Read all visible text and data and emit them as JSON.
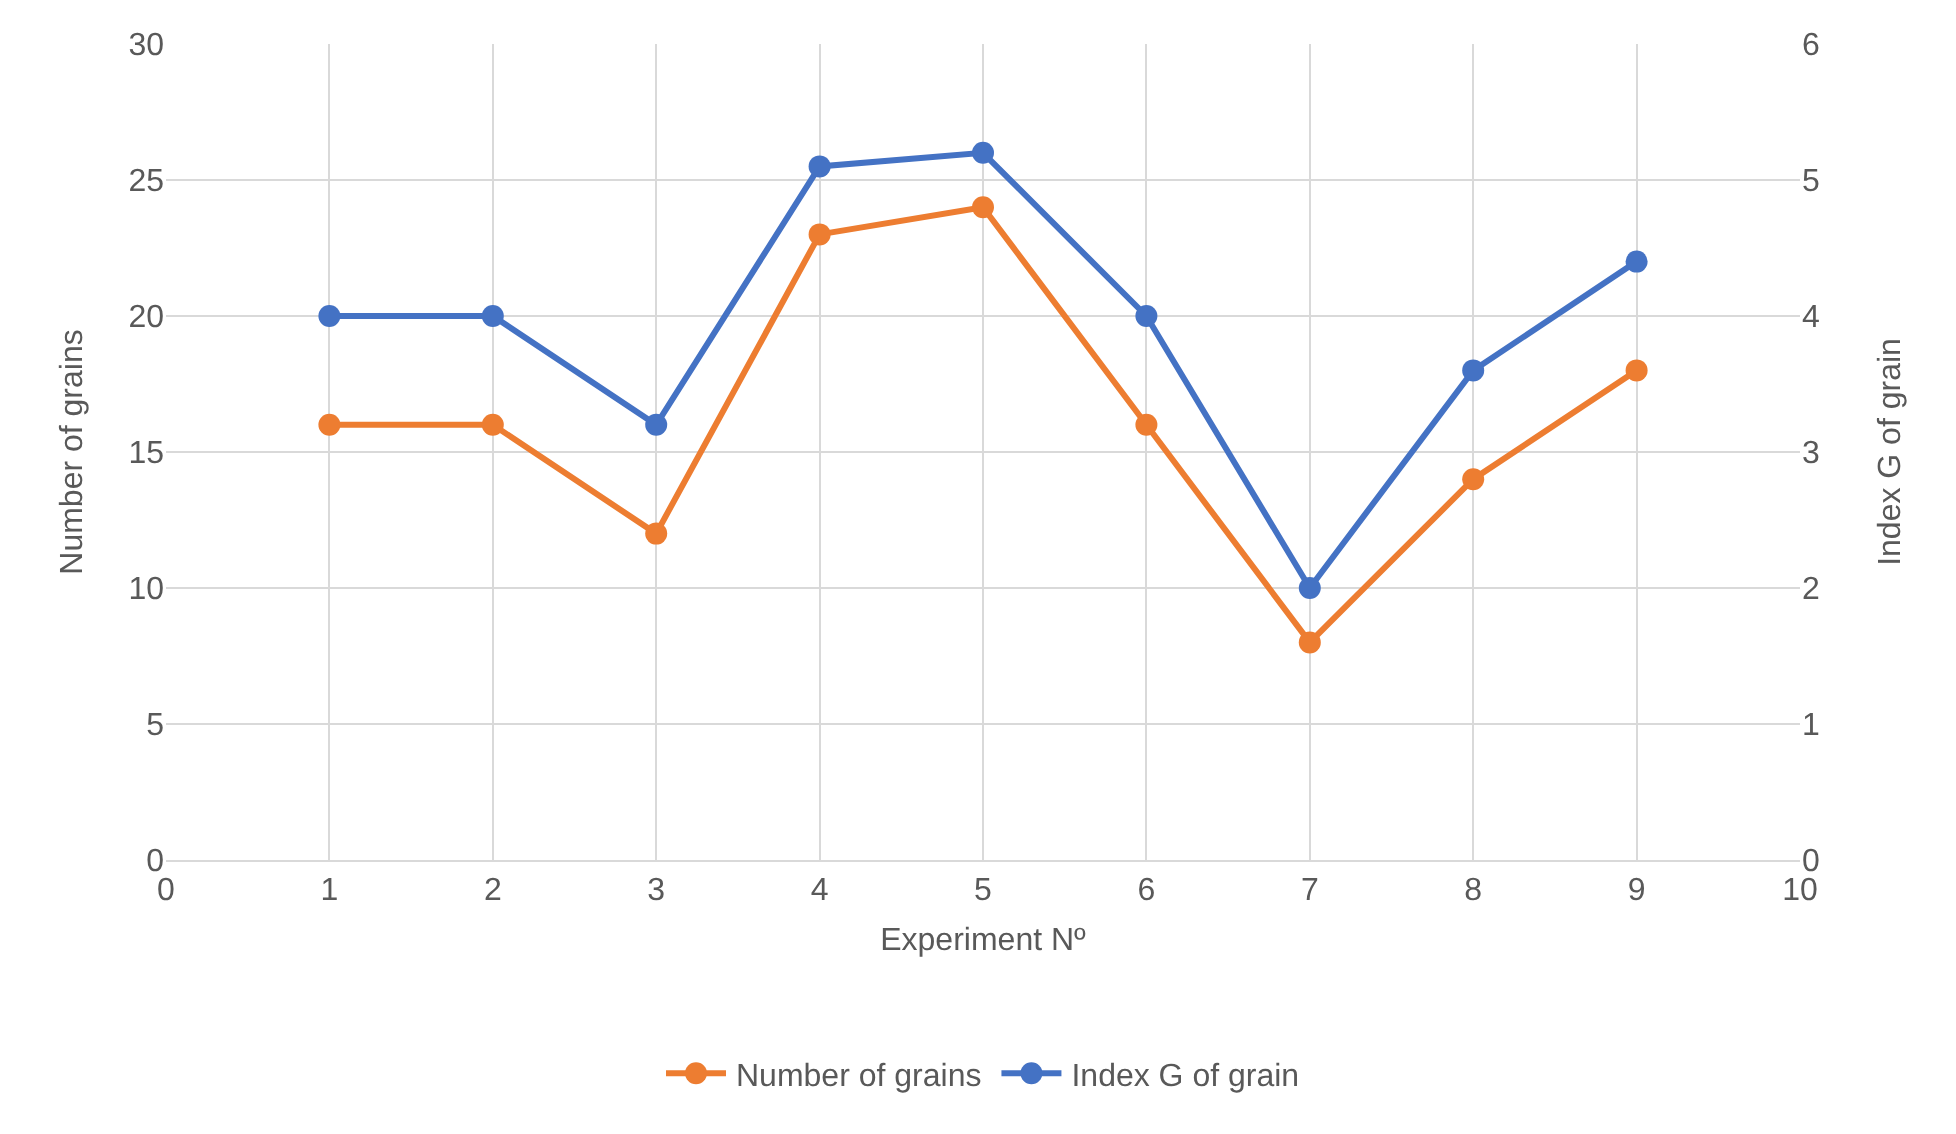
{
  "chart_data": {
    "type": "line",
    "xlabel": "Experiment Nº",
    "ylabel": "Number of grains",
    "y2label": "Index G of grain",
    "x": [
      1,
      2,
      3,
      4,
      5,
      6,
      7,
      8,
      9
    ],
    "series": [
      {
        "name": "Number of grains",
        "color": "#ed7d31",
        "values": [
          16,
          16,
          12,
          23,
          24,
          16,
          8,
          14,
          18
        ]
      },
      {
        "name": "Index G of grain",
        "color": "#4472c4",
        "axis": "y2",
        "values": [
          4,
          4,
          3.2,
          5.1,
          5.2,
          4,
          2,
          3.6,
          4.4
        ]
      }
    ],
    "xlim": [
      0,
      10
    ],
    "xticks": [
      0,
      1,
      2,
      3,
      4,
      5,
      6,
      7,
      8,
      9,
      10
    ],
    "ylim": [
      0,
      30
    ],
    "yticks": [
      0,
      5,
      10,
      15,
      20,
      25,
      30
    ],
    "y2lim": [
      0,
      6
    ],
    "y2ticks": [
      0,
      1,
      2,
      3,
      4,
      5,
      6
    ],
    "grid": true,
    "legend": "bottom",
    "marker": "circle",
    "line_style": "solid"
  }
}
